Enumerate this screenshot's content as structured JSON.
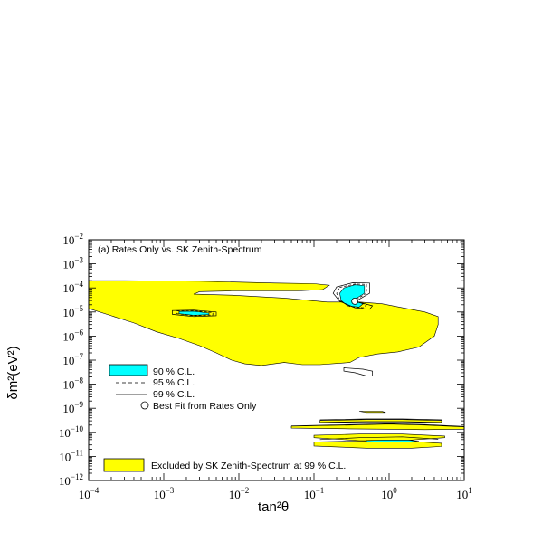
{
  "chart_data": {
    "type": "contour",
    "panel_label": "(a) Rates Only vs. SK Zenith-Spectrum",
    "xlabel": "tan²θ",
    "ylabel": "δm²(eV²)",
    "x_scale": "log",
    "y_scale": "log",
    "xlim": [
      0.0001,
      10
    ],
    "ylim": [
      1e-12,
      0.01
    ],
    "x_ticks": [
      {
        "value": 0.0001,
        "base": "10",
        "exp": "−4"
      },
      {
        "value": 0.001,
        "base": "10",
        "exp": "−3"
      },
      {
        "value": 0.01,
        "base": "10",
        "exp": "−2"
      },
      {
        "value": 0.1,
        "base": "10",
        "exp": "−1"
      },
      {
        "value": 1,
        "base": "10",
        "exp": "0"
      },
      {
        "value": 10,
        "base": "10",
        "exp": "1"
      }
    ],
    "y_ticks": [
      {
        "value": 1e-12,
        "base": "10",
        "exp": "−12"
      },
      {
        "value": 1e-11,
        "base": "10",
        "exp": "−11"
      },
      {
        "value": 1e-10,
        "base": "10",
        "exp": "−10"
      },
      {
        "value": 1e-09,
        "base": "10",
        "exp": "−9"
      },
      {
        "value": 1e-08,
        "base": "10",
        "exp": "−8"
      },
      {
        "value": 1e-07,
        "base": "10",
        "exp": "−7"
      },
      {
        "value": 1e-06,
        "base": "10",
        "exp": "−6"
      },
      {
        "value": 1e-05,
        "base": "10",
        "exp": "−5"
      },
      {
        "value": 0.0001,
        "base": "10",
        "exp": "−4"
      },
      {
        "value": 0.001,
        "base": "10",
        "exp": "−3"
      },
      {
        "value": 0.01,
        "base": "10",
        "exp": "−2"
      }
    ],
    "legend": [
      {
        "label": "90 % C.L.",
        "style": "cyan-fill"
      },
      {
        "label": "95 % C.L.",
        "style": "dashed"
      },
      {
        "label": "99 % C.L.",
        "style": "solid"
      },
      {
        "label": "Best Fit from Rates Only",
        "style": "circle"
      },
      {
        "label": "Excluded by SK Zenith-Spectrum at 99 % C.L.",
        "style": "yellow-fill"
      }
    ],
    "colors": {
      "excluded": "#ffff00",
      "cl90": "#00ffff",
      "line": "#000000",
      "frame": "#000000"
    },
    "excluded_regions": [
      {
        "name": "upper-band",
        "points": [
          [
            0.0001,
            0.0002
          ],
          [
            0.0003,
            0.0002
          ],
          [
            0.003,
            0.00019
          ],
          [
            0.03,
            0.00016
          ],
          [
            0.1,
            0.00015
          ],
          [
            0.16,
            0.00013
          ],
          [
            0.13,
            8.5e-05
          ],
          [
            0.06,
            7.5e-05
          ],
          [
            0.008,
            7.5e-05
          ],
          [
            0.003,
            7e-05
          ],
          [
            0.0025,
            5.5e-05
          ],
          [
            0.008,
            5e-05
          ],
          [
            0.04,
            3.8e-05
          ],
          [
            0.15,
            2.6e-05
          ],
          [
            0.4,
            2.6e-05
          ],
          [
            0.8,
            2.2e-05
          ],
          [
            1.5,
            1.5e-05
          ],
          [
            3,
            1e-05
          ],
          [
            4.5,
            6.5e-06
          ],
          [
            4.5,
            3e-06
          ],
          [
            4,
            1e-06
          ],
          [
            2.5,
            3.5e-07
          ],
          [
            1.3,
            2.2e-07
          ],
          [
            0.7,
            1.8e-07
          ],
          [
            0.4,
            1.3e-07
          ],
          [
            0.3,
            8e-08
          ],
          [
            0.12,
            6.5e-08
          ],
          [
            0.07,
            6.5e-08
          ],
          [
            0.04,
            8e-08
          ],
          [
            0.02,
            6e-08
          ],
          [
            0.012,
            7e-08
          ],
          [
            0.008,
            1e-07
          ],
          [
            0.005,
            2e-07
          ],
          [
            0.003,
            4e-07
          ],
          [
            0.0016,
            8e-07
          ],
          [
            0.0008,
            1.5e-06
          ],
          [
            0.0004,
            3.5e-06
          ],
          [
            0.0002,
            7e-06
          ],
          [
            0.0001,
            1.4e-05
          ]
        ]
      },
      {
        "name": "low-band-1",
        "points": [
          [
            0.4,
            7.5e-10
          ],
          [
            0.8,
            7.5e-10
          ],
          [
            0.9,
            6.7e-10
          ],
          [
            0.5,
            6.7e-10
          ]
        ]
      },
      {
        "name": "low-band-2",
        "points": [
          [
            0.12,
            3.1e-10
          ],
          [
            0.5,
            3.4e-10
          ],
          [
            1.5,
            3.4e-10
          ],
          [
            5,
            3.1e-10
          ],
          [
            5,
            2.6e-10
          ],
          [
            1.5,
            2.8e-10
          ],
          [
            0.5,
            2.8e-10
          ],
          [
            0.12,
            2.6e-10
          ]
        ]
      },
      {
        "name": "low-band-3",
        "points": [
          [
            0.05,
            1.8e-10
          ],
          [
            0.3,
            2e-10
          ],
          [
            1,
            2.2e-10
          ],
          [
            3,
            2e-10
          ],
          [
            10,
            1.7e-10
          ],
          [
            10,
            1.35e-10
          ],
          [
            3,
            1.3e-10
          ],
          [
            1,
            1.35e-10
          ],
          [
            0.3,
            1.4e-10
          ],
          [
            0.05,
            1.5e-10
          ]
        ]
      },
      {
        "name": "low-band-4",
        "points": [
          [
            0.1,
            7.5e-11
          ],
          [
            0.4,
            8.5e-11
          ],
          [
            1.5,
            8.5e-11
          ],
          [
            5.5,
            7e-11
          ],
          [
            5.5,
            6e-11
          ],
          [
            1.5,
            4.5e-11
          ],
          [
            0.4,
            4.5e-11
          ],
          [
            0.1,
            6e-11
          ]
        ]
      },
      {
        "name": "low-band-5",
        "points": [
          [
            0.1,
            4e-11
          ],
          [
            0.5,
            4.4e-11
          ],
          [
            2,
            4.2e-11
          ],
          [
            5,
            3.5e-11
          ],
          [
            5,
            2.6e-11
          ],
          [
            2,
            2.2e-11
          ],
          [
            0.5,
            2.2e-11
          ],
          [
            0.1,
            2.7e-11
          ]
        ]
      }
    ],
    "cl99_contours": [
      {
        "points": [
          [
            0.2,
            0.00011
          ],
          [
            0.33,
            0.000165
          ],
          [
            0.55,
            0.00016
          ],
          [
            0.55,
            6e-05
          ],
          [
            0.36,
            2.8e-05
          ],
          [
            0.6,
            1.8e-05
          ],
          [
            0.55,
            1.3e-05
          ],
          [
            0.35,
            1.5e-05
          ],
          [
            0.22,
            2.8e-05
          ],
          [
            0.18,
            6e-05
          ]
        ],
        "closed": true
      },
      {
        "points": [
          [
            0.0013,
            1.15e-05
          ],
          [
            0.0025,
            1.2e-05
          ],
          [
            0.005,
            1e-05
          ],
          [
            0.005,
            7e-06
          ],
          [
            0.0025,
            6.5e-06
          ],
          [
            0.0013,
            8e-06
          ]
        ],
        "closed": true
      },
      {
        "points": [
          [
            0.25,
            4.8e-08
          ],
          [
            0.45,
            4.2e-08
          ],
          [
            0.6,
            3.5e-08
          ],
          [
            0.6,
            2.2e-08
          ],
          [
            0.5,
            2.2e-08
          ],
          [
            0.35,
            3e-08
          ],
          [
            0.25,
            3.5e-08
          ]
        ],
        "closed": true
      },
      {
        "points": [
          [
            0.12,
            3.3e-10
          ],
          [
            0.5,
            3.6e-10
          ],
          [
            1.5,
            3.6e-10
          ],
          [
            5,
            3.3e-10
          ]
        ],
        "closed": false
      },
      {
        "points": [
          [
            0.12,
            2.55e-10
          ],
          [
            0.5,
            2.7e-10
          ],
          [
            1.5,
            2.7e-10
          ],
          [
            5,
            2.5e-10
          ]
        ],
        "closed": false
      },
      {
        "points": [
          [
            0.05,
            1.85e-10
          ],
          [
            0.3,
            2.1e-10
          ],
          [
            1,
            2.3e-10
          ],
          [
            3,
            2.1e-10
          ],
          [
            10,
            1.75e-10
          ]
        ],
        "closed": false
      },
      {
        "points": [
          [
            0.12,
            5e-11
          ],
          [
            0.4,
            6e-11
          ],
          [
            1.5,
            6.5e-11
          ],
          [
            4.5,
            5.2e-11
          ]
        ],
        "closed": false
      }
    ],
    "cl95_contours": [
      {
        "points": [
          [
            0.22,
            0.000105
          ],
          [
            0.35,
            0.000145
          ],
          [
            0.5,
            0.00014
          ],
          [
            0.5,
            6e-05
          ],
          [
            0.34,
            2.9e-05
          ],
          [
            0.5,
            2e-05
          ],
          [
            0.45,
            1.5e-05
          ],
          [
            0.3,
            1.7e-05
          ],
          [
            0.22,
            3e-05
          ],
          [
            0.2,
            6e-05
          ]
        ],
        "closed": true
      },
      {
        "points": [
          [
            0.0015,
            1.1e-05
          ],
          [
            0.0025,
            1.12e-05
          ],
          [
            0.0045,
            9.5e-06
          ],
          [
            0.0045,
            7.5e-06
          ],
          [
            0.0025,
            7e-06
          ],
          [
            0.0015,
            8.5e-06
          ]
        ],
        "closed": true
      }
    ],
    "cl90_regions": [
      {
        "points": [
          [
            0.25,
            0.0001
          ],
          [
            0.35,
            0.000135
          ],
          [
            0.47,
            0.000125
          ],
          [
            0.47,
            6e-05
          ],
          [
            0.33,
            3e-05
          ],
          [
            0.45,
            2.2e-05
          ],
          [
            0.4,
            1.6e-05
          ],
          [
            0.28,
            1.8e-05
          ],
          [
            0.23,
            3e-05
          ],
          [
            0.22,
            6e-05
          ]
        ]
      },
      {
        "points": [
          [
            0.0016,
            1.05e-05
          ],
          [
            0.0025,
            1.08e-05
          ],
          [
            0.004,
            9e-06
          ],
          [
            0.004,
            7.8e-06
          ],
          [
            0.0025,
            7.3e-06
          ],
          [
            0.0016,
            8.5e-06
          ]
        ]
      },
      {
        "points": [
          [
            0.5,
            4.6e-11
          ],
          [
            0.9,
            4.8e-11
          ],
          [
            1.8,
            4.8e-11
          ],
          [
            2.5,
            4.2e-11
          ],
          [
            1.8,
            4e-11
          ],
          [
            0.9,
            3.9e-11
          ],
          [
            0.5,
            4.1e-11
          ]
        ]
      }
    ],
    "best_fit": {
      "x": 0.35,
      "y": 2.8e-05
    }
  }
}
